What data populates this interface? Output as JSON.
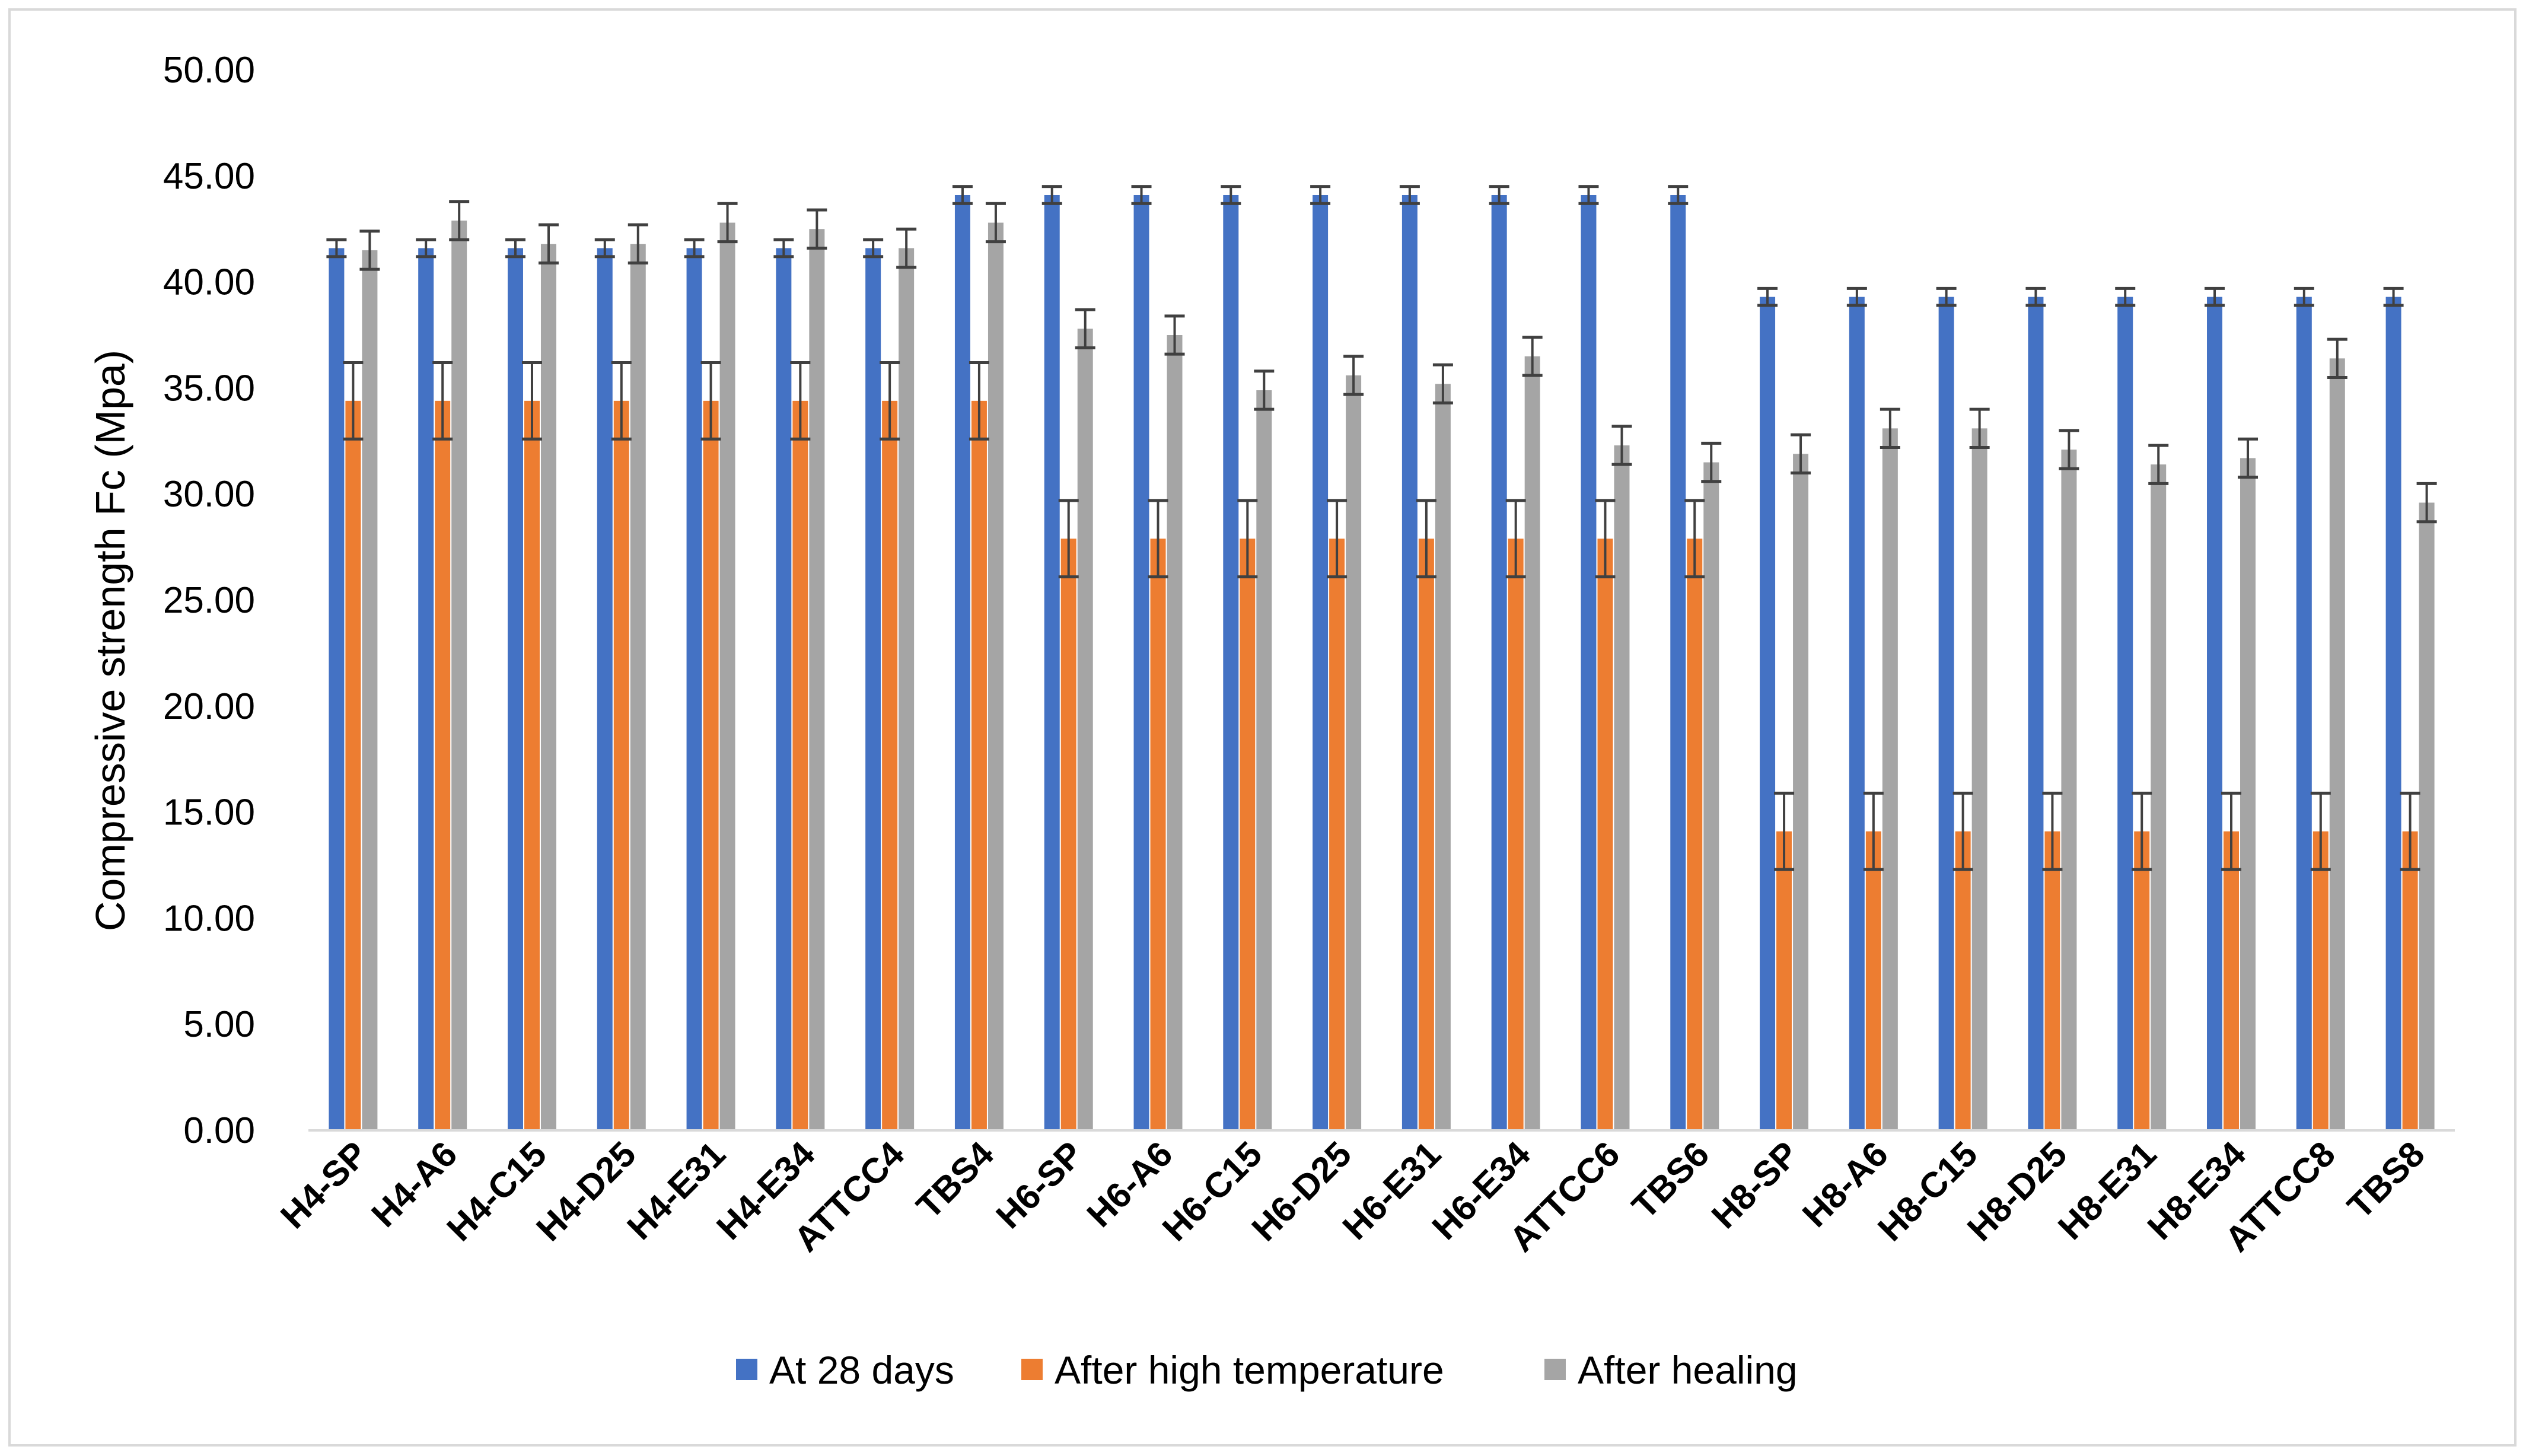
{
  "chart_data": {
    "type": "bar",
    "title": "",
    "xlabel": "",
    "ylabel": "Compressive strength Fc (Mpa)",
    "ylim": [
      0,
      50
    ],
    "yticks": [
      0,
      5,
      10,
      15,
      20,
      25,
      30,
      35,
      40,
      45,
      50
    ],
    "ytick_labels": [
      "0.00",
      "5.00",
      "10.00",
      "15.00",
      "20.00",
      "25.00",
      "30.00",
      "35.00",
      "40.00",
      "45.00",
      "50.00"
    ],
    "grid": false,
    "legend_position": "bottom",
    "categories": [
      "H4-SP",
      "H4-A6",
      "H4-C15",
      "H4-D25",
      "H4-E31",
      "H4-E34",
      "ATTCC4",
      "TBS4",
      "H6-SP",
      "H6-A6",
      "H6-C15",
      "H6-D25",
      "H6-E31",
      "H6-E34",
      "ATTCC6",
      "TBS6",
      "H8-SP",
      "H8-A6",
      "H8-C15",
      "H8-D25",
      "H8-E31",
      "H8-E34",
      "ATTCC8",
      "TBS8"
    ],
    "series": [
      {
        "name": "At 28 days",
        "color": "#4472C4",
        "values": [
          41.6,
          41.6,
          41.6,
          41.6,
          41.6,
          41.6,
          41.6,
          44.1,
          44.1,
          44.1,
          44.1,
          44.1,
          44.1,
          44.1,
          44.1,
          44.1,
          39.3,
          39.3,
          39.3,
          39.3,
          39.3,
          39.3,
          39.3,
          39.3
        ],
        "errors": [
          0.4,
          0.4,
          0.4,
          0.4,
          0.4,
          0.4,
          0.4,
          0.4,
          0.4,
          0.4,
          0.4,
          0.4,
          0.4,
          0.4,
          0.4,
          0.4,
          0.4,
          0.4,
          0.4,
          0.4,
          0.4,
          0.4,
          0.4,
          0.4
        ]
      },
      {
        "name": "After high temperature",
        "color": "#ED7D31",
        "values": [
          34.4,
          34.4,
          34.4,
          34.4,
          34.4,
          34.4,
          34.4,
          34.4,
          27.9,
          27.9,
          27.9,
          27.9,
          27.9,
          27.9,
          27.9,
          27.9,
          14.1,
          14.1,
          14.1,
          14.1,
          14.1,
          14.1,
          14.1,
          14.1
        ],
        "errors": [
          1.8,
          1.8,
          1.8,
          1.8,
          1.8,
          1.8,
          1.8,
          1.8,
          1.8,
          1.8,
          1.8,
          1.8,
          1.8,
          1.8,
          1.8,
          1.8,
          1.8,
          1.8,
          1.8,
          1.8,
          1.8,
          1.8,
          1.8,
          1.8
        ]
      },
      {
        "name": "After healing",
        "color": "#A5A5A5",
        "values": [
          41.5,
          42.9,
          41.8,
          41.8,
          42.8,
          42.5,
          41.6,
          42.8,
          37.8,
          37.5,
          34.9,
          35.6,
          35.2,
          36.5,
          32.3,
          31.5,
          31.9,
          33.1,
          33.1,
          32.1,
          31.4,
          31.7,
          36.4,
          29.6
        ],
        "errors": [
          0.9,
          0.9,
          0.9,
          0.9,
          0.9,
          0.9,
          0.9,
          0.9,
          0.9,
          0.9,
          0.9,
          0.9,
          0.9,
          0.9,
          0.9,
          0.9,
          0.9,
          0.9,
          0.9,
          0.9,
          0.9,
          0.9,
          0.9,
          0.9
        ]
      }
    ]
  }
}
